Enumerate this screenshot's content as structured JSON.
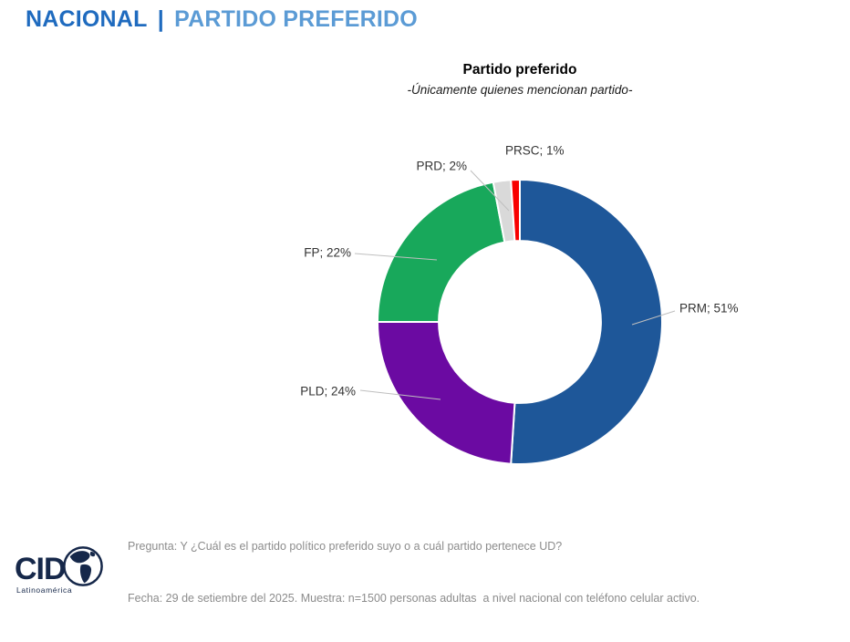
{
  "header": {
    "section": "NACIONAL",
    "separator": "|",
    "title": "PARTIDO PREFERIDO"
  },
  "chart_data": {
    "type": "pie",
    "variant": "donut",
    "title": "Partido preferido",
    "subtitle": "-Únicamente quienes mencionan partido-",
    "unit": "%",
    "direction": "clockwise",
    "start_at": "top",
    "hole_ratio": 0.57,
    "legend": "none",
    "label_format": "{label}; {value}%",
    "slices": [
      {
        "label": "PRM",
        "value": 51,
        "color": "#1e5799"
      },
      {
        "label": "PLD",
        "value": 24,
        "color": "#6b0aa2"
      },
      {
        "label": "FP",
        "value": 22,
        "color": "#18a85b"
      },
      {
        "label": "PRD",
        "value": 2,
        "color": "#d9d9d9"
      },
      {
        "label": "PRSC",
        "value": 1,
        "color": "#f80000"
      }
    ],
    "leader_line_color": "#bfbfbf"
  },
  "footer": {
    "logo": {
      "text": "CID",
      "subtext": "Latinoamérica",
      "icon": "globe-americas-icon"
    },
    "line1": "Pregunta: Y ¿Cuál es el partido político preferido suyo o a cuál partido pertenece UD?",
    "line2": "Fecha: 29 de setiembre del 2025. Muestra: n=1500 personas adultas  a nivel nacional con teléfono celular activo."
  },
  "colors": {
    "header_dark_blue": "#1f6bbf",
    "header_light_blue": "#5b9bd5",
    "footer_text_gray": "#8c8c8c",
    "logo_navy": "#16284a"
  }
}
